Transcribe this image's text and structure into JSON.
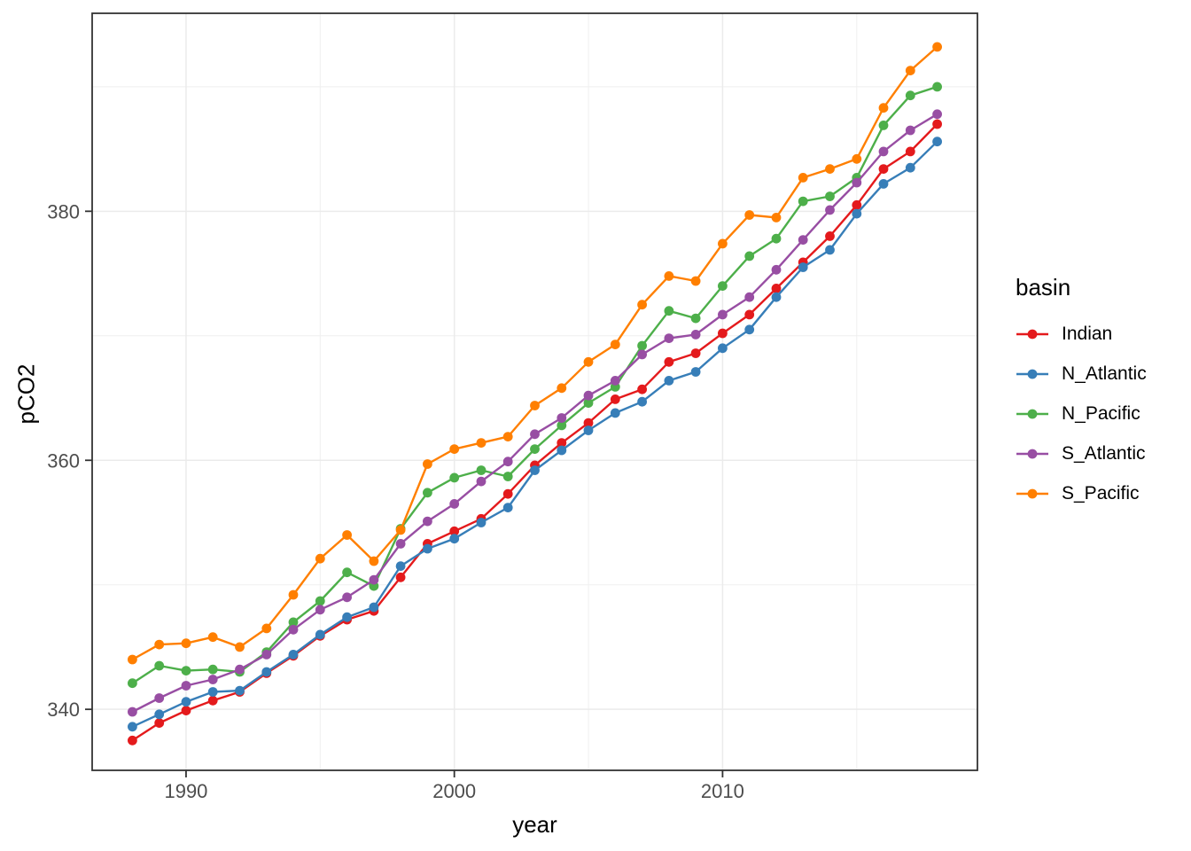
{
  "chart_data": {
    "type": "line",
    "title": "",
    "xlabel": "year",
    "ylabel": "pCO2",
    "legend_title": "basin",
    "legend_position": "right",
    "grid": true,
    "xlim": [
      1986.5,
      2019.5
    ],
    "ylim": [
      335.1,
      395.9
    ],
    "x_ticks": [
      1990,
      2000,
      2010
    ],
    "x_minor_ticks": [
      1995,
      2005,
      2015
    ],
    "y_ticks": [
      340,
      360,
      380
    ],
    "y_minor_ticks": [
      350,
      370,
      390
    ],
    "x": [
      1988,
      1989,
      1990,
      1991,
      1992,
      1993,
      1994,
      1995,
      1996,
      1997,
      1998,
      1999,
      2000,
      2001,
      2002,
      2003,
      2004,
      2005,
      2006,
      2007,
      2008,
      2009,
      2010,
      2011,
      2012,
      2013,
      2014,
      2015,
      2016,
      2017,
      2018
    ],
    "series": [
      {
        "name": "Indian",
        "color": "#E41A1C",
        "values": [
          337.5,
          338.9,
          339.9,
          340.7,
          341.4,
          342.9,
          344.3,
          345.9,
          347.2,
          347.9,
          350.6,
          353.3,
          354.3,
          355.3,
          357.3,
          359.6,
          361.4,
          363.0,
          364.9,
          365.7,
          367.9,
          368.6,
          370.2,
          371.7,
          373.8,
          375.9,
          378.0,
          380.5,
          383.4,
          384.8,
          387.0
        ]
      },
      {
        "name": "N_Atlantic",
        "color": "#377EB8",
        "values": [
          338.6,
          339.6,
          340.6,
          341.4,
          341.5,
          343.0,
          344.4,
          346.0,
          347.4,
          348.2,
          351.5,
          352.9,
          353.7,
          355.0,
          356.2,
          359.2,
          360.8,
          362.4,
          363.8,
          364.7,
          366.4,
          367.1,
          369.0,
          370.5,
          373.1,
          375.5,
          376.9,
          379.8,
          382.2,
          383.5,
          385.6
        ]
      },
      {
        "name": "N_Pacific",
        "color": "#4DAF4A",
        "values": [
          342.1,
          343.5,
          343.1,
          343.2,
          343.0,
          344.6,
          347.0,
          348.7,
          351.0,
          349.9,
          354.5,
          357.4,
          358.6,
          359.2,
          358.7,
          360.9,
          362.8,
          364.6,
          365.9,
          369.2,
          372.0,
          371.4,
          374.0,
          376.4,
          377.8,
          380.8,
          381.2,
          382.7,
          386.9,
          389.3,
          390.0
        ]
      },
      {
        "name": "S_Atlantic",
        "color": "#984EA3",
        "values": [
          339.8,
          340.9,
          341.9,
          342.4,
          343.2,
          344.4,
          346.4,
          348.0,
          349.0,
          350.4,
          353.3,
          355.1,
          356.5,
          358.3,
          359.9,
          362.1,
          363.4,
          365.2,
          366.4,
          368.5,
          369.8,
          370.1,
          371.7,
          373.1,
          375.3,
          377.7,
          380.1,
          382.3,
          384.8,
          386.5,
          387.8
        ]
      },
      {
        "name": "S_Pacific",
        "color": "#FF7F00",
        "values": [
          344.0,
          345.2,
          345.3,
          345.8,
          345.0,
          346.5,
          349.2,
          352.1,
          354.0,
          351.9,
          354.4,
          359.7,
          360.9,
          361.4,
          361.9,
          364.4,
          365.8,
          367.9,
          369.3,
          372.5,
          374.8,
          374.4,
          377.4,
          379.7,
          379.5,
          382.7,
          383.4,
          384.2,
          388.3,
          391.3,
          393.2
        ]
      }
    ]
  },
  "axes": {
    "x_title": "year",
    "y_title": "pCO2",
    "x_tick_labels": [
      "1990",
      "2000",
      "2010"
    ],
    "y_tick_labels": [
      "340",
      "360",
      "380"
    ]
  },
  "legend": {
    "title": "basin",
    "items": [
      {
        "label": "Indian",
        "color": "#E41A1C"
      },
      {
        "label": "N_Atlantic",
        "color": "#377EB8"
      },
      {
        "label": "N_Pacific",
        "color": "#4DAF4A"
      },
      {
        "label": "S_Atlantic",
        "color": "#984EA3"
      },
      {
        "label": "S_Pacific",
        "color": "#FF7F00"
      }
    ]
  },
  "theme": {
    "panel_border_color": "#333333",
    "grid_major_color": "#ebebeb",
    "grid_minor_color": "#efefef",
    "tick_color": "#333333",
    "tick_label_color": "#4d4d4d",
    "background": "#ffffff"
  }
}
